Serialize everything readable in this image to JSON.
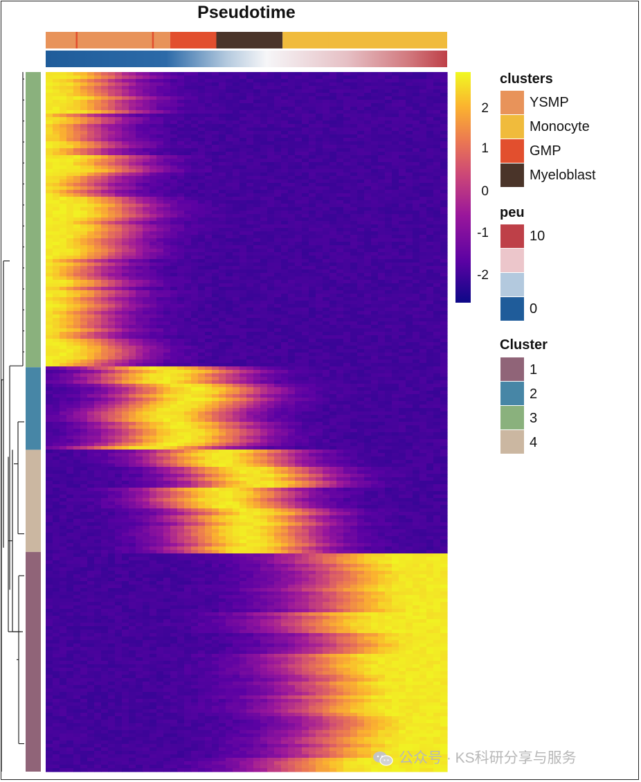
{
  "chart_data": {
    "type": "heatmap",
    "title": "Pseudotime",
    "colorbar": {
      "ticks": [
        "2",
        "1",
        "0",
        "-1",
        "-2"
      ],
      "tick_values": [
        2,
        1,
        0,
        -1,
        -2
      ],
      "range": [
        -2.6,
        2.6
      ],
      "colors": [
        "#0d0887",
        "#5b02a3",
        "#9a179b",
        "#cb4678",
        "#eb7852",
        "#fbb32f",
        "#f0f921"
      ]
    },
    "annotations": {
      "clusters": {
        "title": "clusters",
        "legend": [
          {
            "label": "YSMP",
            "color": "#e8935a"
          },
          {
            "label": "Monocyte",
            "color": "#f0bb3c"
          },
          {
            "label": "GMP",
            "color": "#e24f2e"
          },
          {
            "label": "Myeloblast",
            "color": "#4a3429"
          }
        ]
      },
      "peu": {
        "title": "peu",
        "legend": [
          {
            "label": "10",
            "color": "#be4048"
          },
          {
            "label": "",
            "color": "#ecc6cb"
          },
          {
            "label": "",
            "color": "#b3c9de"
          },
          {
            "label": "0",
            "color": "#1f5c9a"
          }
        ]
      },
      "Cluster": {
        "title": "Cluster",
        "legend": [
          {
            "label": "1",
            "color": "#906478"
          },
          {
            "label": "2",
            "color": "#4786a6"
          },
          {
            "label": "3",
            "color": "#8ab17d"
          },
          {
            "label": "4",
            "color": "#cbb7a1"
          }
        ]
      }
    },
    "row_clusters": [
      {
        "cluster": "3",
        "fraction": 0.422,
        "peak_pseudotime": 0.02
      },
      {
        "cluster": "2",
        "fraction": 0.118,
        "peak_pseudotime": 0.32
      },
      {
        "cluster": "4",
        "fraction": 0.146,
        "peak_pseudotime": 0.48
      },
      {
        "cluster": "1",
        "fraction": 0.314,
        "peak_pseudotime": 0.88
      }
    ],
    "column_clusters_order": [
      "YSMP",
      "GMP",
      "Myeloblast",
      "Monocyte"
    ],
    "grid": false,
    "legend_position": "right"
  },
  "watermark": {
    "text": "公众号 · KS科研分享与服务",
    "icon": "wechat-icon"
  }
}
